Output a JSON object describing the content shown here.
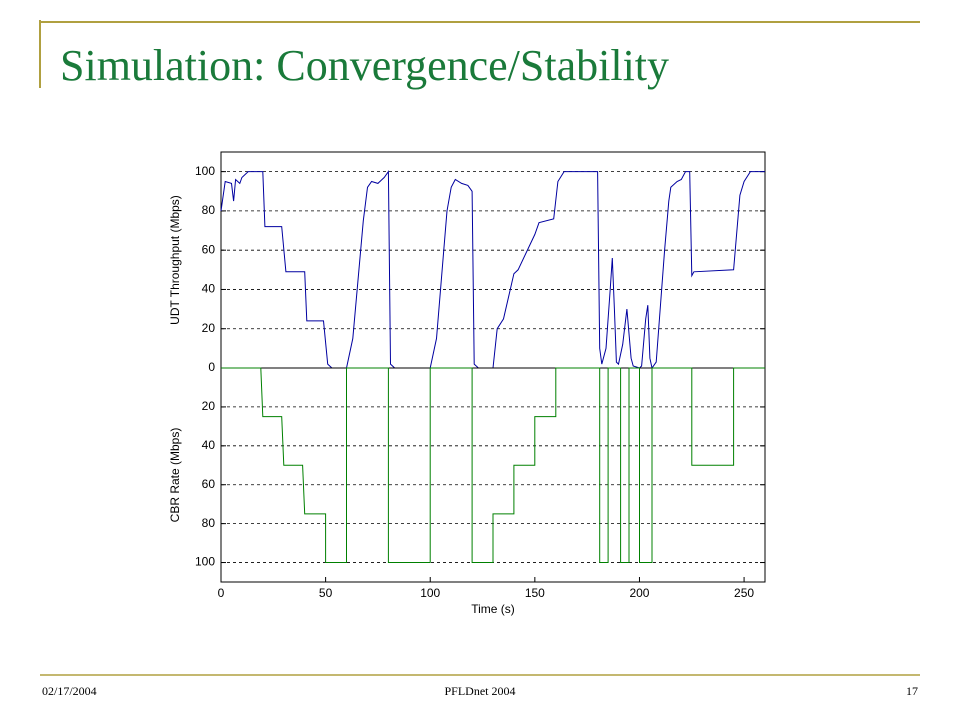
{
  "slide": {
    "title": "Simulation: Convergence/Stability",
    "date": "02/17/2004",
    "footer": "PFLDnet 2004",
    "page": "17"
  },
  "chart_data": [
    {
      "type": "line",
      "ylabel": "UDT Throughput (Mbps)",
      "xlim": [
        0,
        260
      ],
      "ylim": [
        0,
        110
      ],
      "yticks": [
        0,
        20,
        40,
        60,
        80,
        100
      ],
      "grid": "y",
      "series": [
        {
          "name": "UDT Throughput",
          "color": "#0000a0",
          "x": [
            0,
            2,
            5,
            6,
            7,
            9,
            10,
            13,
            20,
            21,
            29,
            31,
            40,
            41,
            49,
            51,
            53,
            60,
            63,
            68,
            70,
            72,
            75,
            78,
            80,
            81,
            83,
            100,
            103,
            108,
            110,
            112,
            115,
            118,
            120,
            121,
            123,
            130,
            132,
            135,
            140,
            142,
            150,
            152,
            159,
            161,
            164,
            180,
            181,
            182,
            184,
            186,
            187,
            188,
            189,
            190,
            192,
            194,
            196,
            197,
            200,
            201,
            203,
            204,
            205,
            206,
            208,
            212,
            214,
            215,
            218,
            220,
            222,
            224,
            225,
            226,
            245,
            248,
            250,
            253,
            260
          ],
          "values": [
            80,
            95,
            94,
            85,
            96,
            94,
            97,
            100,
            100,
            72,
            72,
            49,
            49,
            24,
            24,
            2,
            0,
            0,
            15,
            75,
            92,
            95,
            94,
            97,
            100,
            2,
            0,
            0,
            15,
            80,
            92,
            96,
            94,
            93,
            90,
            2,
            0,
            0,
            20,
            25,
            48,
            50,
            68,
            74,
            76,
            95,
            100,
            100,
            10,
            2,
            10,
            40,
            56,
            30,
            3,
            2,
            12,
            30,
            5,
            1,
            0,
            1,
            25,
            32,
            5,
            0,
            3,
            60,
            85,
            92,
            95,
            96,
            100,
            100,
            47,
            49,
            50,
            88,
            95,
            100,
            100
          ]
        }
      ]
    },
    {
      "type": "line",
      "ylabel": "CBR Rate (Mbps)",
      "xlabel": "Time (s)",
      "xlim": [
        0,
        260
      ],
      "xticks": [
        0,
        50,
        100,
        150,
        200,
        250
      ],
      "ylim": [
        0,
        110
      ],
      "inverted": true,
      "yticks": [
        20,
        40,
        60,
        80,
        100
      ],
      "grid": "y",
      "series": [
        {
          "name": "CBR Rate",
          "color": "#008000",
          "x": [
            0,
            19,
            20,
            29,
            30,
            39,
            40,
            50,
            50,
            60,
            60,
            80,
            80,
            100,
            100,
            120,
            120,
            130,
            130,
            140,
            140,
            150,
            150,
            160,
            160,
            181,
            181,
            185,
            185,
            191,
            191,
            195,
            195,
            200,
            200,
            206,
            206,
            225,
            225,
            245,
            245,
            260
          ],
          "values": [
            0,
            0,
            25,
            25,
            50,
            50,
            75,
            75,
            100,
            100,
            0,
            0,
            100,
            100,
            0,
            0,
            100,
            100,
            75,
            75,
            50,
            50,
            25,
            25,
            0,
            0,
            100,
            100,
            0,
            0,
            100,
            100,
            0,
            0,
            100,
            100,
            0,
            0,
            50,
            50,
            0,
            0
          ]
        }
      ]
    }
  ]
}
